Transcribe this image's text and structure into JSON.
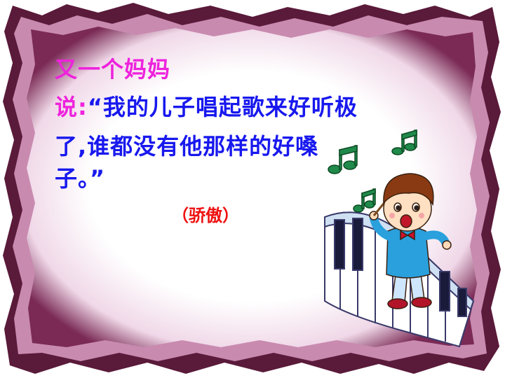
{
  "slide": {
    "line1": "又一个妈妈",
    "line2_prefix": "说:",
    "line2_quote": "“我的儿子唱起歌来好听极",
    "line3": "了,谁都没有他那样的好嗓",
    "line4": "子。”",
    "label": "（骄傲）"
  },
  "colors": {
    "magenta": "#ee22dd",
    "blue": "#1818ee",
    "red": "#ee1111",
    "frame_dark": "#5a1a3a",
    "frame_light": "#e6c6dc"
  },
  "icons": {
    "frame": "torn-paper-frame",
    "illustration": "singing-boy-on-piano-keys",
    "notes": "music-note-icon"
  }
}
